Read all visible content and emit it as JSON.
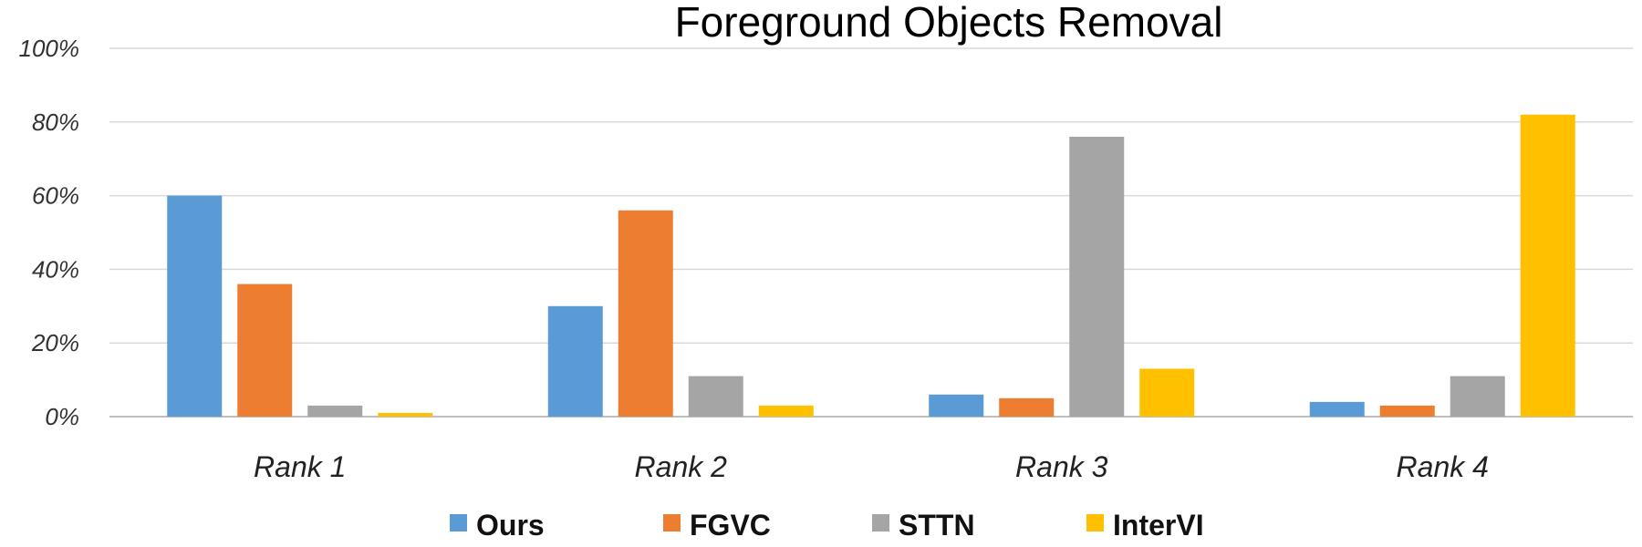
{
  "chart_data": {
    "type": "bar",
    "title": "Foreground Objects Removal",
    "categories": [
      "Rank 1",
      "Rank 2",
      "Rank 3",
      "Rank 4"
    ],
    "series": [
      {
        "name": "Ours",
        "values": [
          60,
          30,
          6,
          4
        ]
      },
      {
        "name": "FGVC",
        "values": [
          36,
          56,
          5,
          3
        ]
      },
      {
        "name": "STTN",
        "values": [
          3,
          11,
          76,
          11
        ]
      },
      {
        "name": "InterVI",
        "values": [
          1,
          3,
          13,
          82
        ]
      }
    ],
    "ylim": [
      0,
      100
    ],
    "yticks": [
      "0%",
      "20%",
      "40%",
      "60%",
      "80%",
      "100%"
    ],
    "grid": true,
    "legend_position": "bottom",
    "colors": [
      "#5b9bd5",
      "#ed7d31",
      "#a5a5a5",
      "#ffc000"
    ]
  }
}
